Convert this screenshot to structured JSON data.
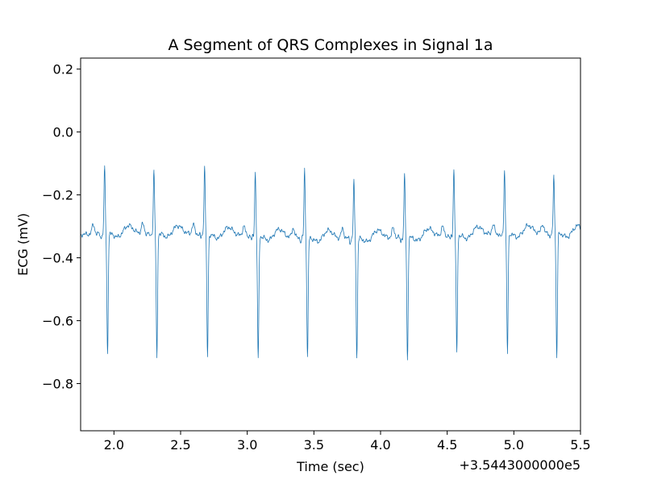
{
  "chart_data": {
    "type": "line",
    "title": "A Segment of QRS Complexes in Signal 1a",
    "xlabel": "Time (sec)",
    "ylabel": "ECG (mV)",
    "x_offset_label": "+3.5443000000e5",
    "xlim": [
      1.75,
      5.5
    ],
    "ylim": [
      -0.95,
      0.235
    ],
    "x_ticks": [
      2.0,
      2.5,
      3.0,
      3.5,
      4.0,
      4.5,
      5.0,
      5.5
    ],
    "x_tick_labels": [
      "2.0",
      "2.5",
      "3.0",
      "3.5",
      "4.0",
      "4.5",
      "5.0",
      "5.5"
    ],
    "y_ticks": [
      0.2,
      0.0,
      -0.2,
      -0.4,
      -0.6,
      -0.8
    ],
    "y_tick_labels": [
      "0.2",
      "0.0",
      "−0.2",
      "−0.4",
      "−0.6",
      "−0.8"
    ],
    "grid": false,
    "line_color": "#1f77b4",
    "baseline_mV": -0.33,
    "beats": [
      {
        "t": 1.93,
        "peak": -0.115,
        "trough": -0.705
      },
      {
        "t": 2.3,
        "peak": -0.128,
        "trough": -0.718
      },
      {
        "t": 2.68,
        "peak": -0.11,
        "trough": -0.715
      },
      {
        "t": 3.06,
        "peak": -0.128,
        "trough": -0.718
      },
      {
        "t": 3.43,
        "peak": -0.115,
        "trough": -0.71
      },
      {
        "t": 3.8,
        "peak": -0.15,
        "trough": -0.71
      },
      {
        "t": 4.18,
        "peak": -0.133,
        "trough": -0.718
      },
      {
        "t": 4.55,
        "peak": -0.12,
        "trough": -0.7
      },
      {
        "t": 4.93,
        "peak": -0.123,
        "trough": -0.705
      },
      {
        "t": 5.3,
        "peak": -0.145,
        "trough": -0.718
      }
    ]
  }
}
